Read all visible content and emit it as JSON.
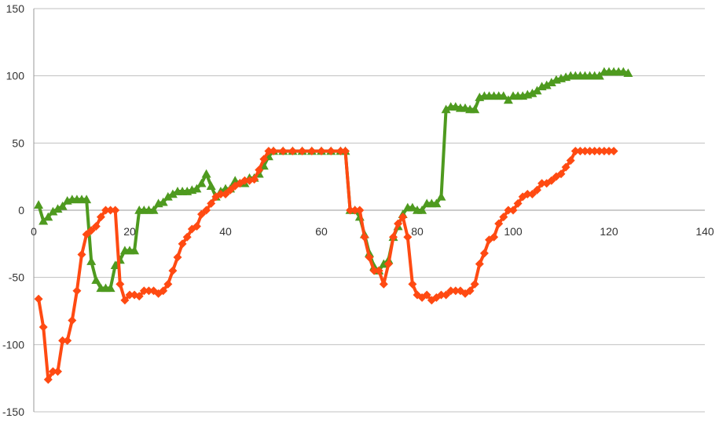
{
  "chart_data": {
    "type": "line",
    "x_axis": {
      "min": 0,
      "max": 140,
      "ticks": [
        0,
        20,
        40,
        60,
        80,
        100,
        120,
        140
      ]
    },
    "y_axis": {
      "min": -150,
      "max": 150,
      "ticks": [
        -150,
        -100,
        -50,
        0,
        50,
        100,
        150
      ]
    },
    "grid": {
      "horizontal": true,
      "vertical": false,
      "color": "#c0c0c0"
    },
    "legend": "none",
    "series": [
      {
        "color": "#4e9a1f",
        "marker": "triangle",
        "points": [
          [
            1,
            4
          ],
          [
            2,
            -8
          ],
          [
            3,
            -5
          ],
          [
            4,
            -1
          ],
          [
            5,
            1
          ],
          [
            6,
            3
          ],
          [
            7,
            7
          ],
          [
            8,
            8
          ],
          [
            9,
            8
          ],
          [
            10,
            8
          ],
          [
            11,
            8
          ],
          [
            12,
            -38
          ],
          [
            13,
            -52
          ],
          [
            14,
            -58
          ],
          [
            15,
            -58
          ],
          [
            16,
            -58
          ],
          [
            17,
            -41
          ],
          [
            18,
            -37
          ],
          [
            19,
            -30
          ],
          [
            20,
            -30
          ],
          [
            21,
            -30
          ],
          [
            22,
            0
          ],
          [
            23,
            0
          ],
          [
            24,
            0
          ],
          [
            25,
            0
          ],
          [
            26,
            5
          ],
          [
            27,
            6
          ],
          [
            28,
            10
          ],
          [
            29,
            12
          ],
          [
            30,
            14
          ],
          [
            31,
            14
          ],
          [
            32,
            14
          ],
          [
            33,
            15
          ],
          [
            34,
            16
          ],
          [
            35,
            20
          ],
          [
            36,
            27
          ],
          [
            37,
            18
          ],
          [
            38,
            10
          ],
          [
            39,
            14
          ],
          [
            40,
            16
          ],
          [
            41,
            16
          ],
          [
            42,
            22
          ],
          [
            43,
            20
          ],
          [
            44,
            20
          ],
          [
            45,
            24
          ],
          [
            46,
            24
          ],
          [
            47,
            27
          ],
          [
            48,
            33
          ],
          [
            49,
            40
          ],
          [
            50,
            44
          ],
          [
            52,
            44
          ],
          [
            54,
            44
          ],
          [
            56,
            44
          ],
          [
            58,
            44
          ],
          [
            60,
            44
          ],
          [
            62,
            44
          ],
          [
            64,
            44
          ],
          [
            65,
            44
          ],
          [
            66,
            0
          ],
          [
            67,
            0
          ],
          [
            68,
            -5
          ],
          [
            69,
            -18
          ],
          [
            70,
            -32
          ],
          [
            71,
            -42
          ],
          [
            72,
            -45
          ],
          [
            73,
            -40
          ],
          [
            74,
            -37
          ],
          [
            75,
            -20
          ],
          [
            76,
            -12
          ],
          [
            77,
            -3
          ],
          [
            78,
            2
          ],
          [
            79,
            2
          ],
          [
            80,
            0
          ],
          [
            81,
            0
          ],
          [
            82,
            5
          ],
          [
            83,
            5
          ],
          [
            84,
            5
          ],
          [
            85,
            10
          ],
          [
            86,
            75
          ],
          [
            87,
            77
          ],
          [
            88,
            77
          ],
          [
            89,
            76
          ],
          [
            90,
            76
          ],
          [
            91,
            75
          ],
          [
            92,
            75
          ],
          [
            93,
            84
          ],
          [
            94,
            85
          ],
          [
            95,
            85
          ],
          [
            96,
            85
          ],
          [
            97,
            85
          ],
          [
            98,
            85
          ],
          [
            99,
            82
          ],
          [
            100,
            85
          ],
          [
            101,
            85
          ],
          [
            102,
            85
          ],
          [
            103,
            86
          ],
          [
            104,
            87
          ],
          [
            105,
            89
          ],
          [
            106,
            92
          ],
          [
            107,
            93
          ],
          [
            108,
            95
          ],
          [
            109,
            97
          ],
          [
            110,
            98
          ],
          [
            111,
            99
          ],
          [
            112,
            100
          ],
          [
            113,
            100
          ],
          [
            114,
            100
          ],
          [
            115,
            100
          ],
          [
            116,
            100
          ],
          [
            117,
            100
          ],
          [
            118,
            100
          ],
          [
            119,
            103
          ],
          [
            120,
            103
          ],
          [
            121,
            103
          ],
          [
            122,
            103
          ],
          [
            123,
            103
          ],
          [
            124,
            102
          ]
        ]
      },
      {
        "color": "#ff4a12",
        "marker": "diamond",
        "points": [
          [
            1,
            -66
          ],
          [
            2,
            -87
          ],
          [
            3,
            -126
          ],
          [
            4,
            -120
          ],
          [
            5,
            -120
          ],
          [
            6,
            -97
          ],
          [
            7,
            -97
          ],
          [
            8,
            -82
          ],
          [
            9,
            -60
          ],
          [
            10,
            -33
          ],
          [
            11,
            -18
          ],
          [
            12,
            -15
          ],
          [
            13,
            -12
          ],
          [
            14,
            -5
          ],
          [
            15,
            0
          ],
          [
            16,
            0
          ],
          [
            17,
            0
          ],
          [
            18,
            -55
          ],
          [
            19,
            -67
          ],
          [
            20,
            -63
          ],
          [
            21,
            -63
          ],
          [
            22,
            -64
          ],
          [
            23,
            -60
          ],
          [
            24,
            -60
          ],
          [
            25,
            -60
          ],
          [
            26,
            -62
          ],
          [
            27,
            -60
          ],
          [
            28,
            -55
          ],
          [
            29,
            -45
          ],
          [
            30,
            -35
          ],
          [
            31,
            -25
          ],
          [
            32,
            -20
          ],
          [
            33,
            -14
          ],
          [
            34,
            -12
          ],
          [
            35,
            -3
          ],
          [
            36,
            0
          ],
          [
            37,
            5
          ],
          [
            38,
            10
          ],
          [
            39,
            12
          ],
          [
            40,
            12
          ],
          [
            41,
            15
          ],
          [
            42,
            18
          ],
          [
            43,
            20
          ],
          [
            44,
            22
          ],
          [
            45,
            22
          ],
          [
            46,
            23
          ],
          [
            47,
            30
          ],
          [
            48,
            38
          ],
          [
            49,
            44
          ],
          [
            50,
            44
          ],
          [
            52,
            44
          ],
          [
            54,
            44
          ],
          [
            56,
            44
          ],
          [
            58,
            44
          ],
          [
            60,
            44
          ],
          [
            62,
            44
          ],
          [
            64,
            44
          ],
          [
            65,
            44
          ],
          [
            66,
            0
          ],
          [
            67,
            0
          ],
          [
            68,
            0
          ],
          [
            69,
            -20
          ],
          [
            70,
            -35
          ],
          [
            71,
            -45
          ],
          [
            72,
            -45
          ],
          [
            73,
            -55
          ],
          [
            74,
            -40
          ],
          [
            75,
            -20
          ],
          [
            76,
            -10
          ],
          [
            77,
            -5
          ],
          [
            78,
            -20
          ],
          [
            79,
            -55
          ],
          [
            80,
            -63
          ],
          [
            81,
            -65
          ],
          [
            82,
            -63
          ],
          [
            83,
            -67
          ],
          [
            84,
            -65
          ],
          [
            85,
            -63
          ],
          [
            86,
            -63
          ],
          [
            87,
            -60
          ],
          [
            88,
            -60
          ],
          [
            89,
            -60
          ],
          [
            90,
            -62
          ],
          [
            91,
            -60
          ],
          [
            92,
            -55
          ],
          [
            93,
            -40
          ],
          [
            94,
            -32
          ],
          [
            95,
            -22
          ],
          [
            96,
            -20
          ],
          [
            97,
            -10
          ],
          [
            98,
            -5
          ],
          [
            99,
            0
          ],
          [
            100,
            0
          ],
          [
            101,
            5
          ],
          [
            102,
            10
          ],
          [
            103,
            12
          ],
          [
            104,
            12
          ],
          [
            105,
            15
          ],
          [
            106,
            20
          ],
          [
            107,
            20
          ],
          [
            108,
            22
          ],
          [
            109,
            25
          ],
          [
            110,
            27
          ],
          [
            111,
            32
          ],
          [
            112,
            37
          ],
          [
            113,
            44
          ],
          [
            114,
            44
          ],
          [
            115,
            44
          ],
          [
            116,
            44
          ],
          [
            117,
            44
          ],
          [
            118,
            44
          ],
          [
            119,
            44
          ],
          [
            120,
            44
          ],
          [
            121,
            44
          ]
        ]
      }
    ]
  }
}
